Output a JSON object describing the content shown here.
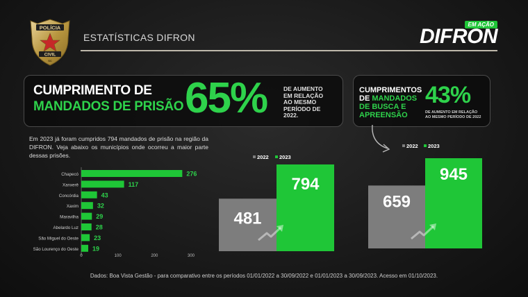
{
  "header": {
    "title": "ESTATÍSTICAS DIFRON",
    "badge": {
      "top": "POLÍCIA",
      "bottom": "CIVIL",
      "state": "SC"
    },
    "logo": {
      "tag": "EM AÇÃO",
      "name": "DIFRON"
    }
  },
  "stat1": {
    "label_line1": "CUMPRIMENTO DE",
    "label_line2": "MANDADOS DE PRISÃO",
    "percent": "65%",
    "desc": [
      "DE AUMENTO",
      "EM RELAÇÃO",
      "AO MESMO",
      "PERÍODO DE",
      "2022."
    ]
  },
  "stat2": {
    "label_line1": "CUMPRIMENTOS",
    "label_line2_prefix": "DE",
    "label_line2": "MANDADOS",
    "label_line3": "DE BUSCA E",
    "label_line4": "APREENSÃO",
    "percent": "43%",
    "desc": [
      "DE AUMENTO EM RELAÇÃO",
      "AO MESMO PERÍODO DE  2022"
    ]
  },
  "intro_text": "Em 2023 já foram cumpridos 794 mandados de prisão na região da DIFRON. Veja abaixo os municípios onde ocorreu a maior parte dessas prisões.",
  "colors": {
    "green": "#2ed24b",
    "gray": "#7d7d7d",
    "bar_green": "#1fc637"
  },
  "chart_data": [
    {
      "type": "bar",
      "orientation": "horizontal",
      "categories": [
        "Chapecó",
        "Xanxerê",
        "Concórdia",
        "Xaxim",
        "Maravilha",
        "Abelardo Luz",
        "São Miguel do Oeste",
        "São Lourenço do Oeste"
      ],
      "values": [
        276,
        117,
        43,
        32,
        29,
        28,
        23,
        19
      ],
      "xlim": [
        0,
        300
      ],
      "xticks": [
        0,
        100,
        200,
        300
      ]
    },
    {
      "type": "bar",
      "categories": [
        "2022",
        "2023"
      ],
      "values": [
        481,
        794
      ],
      "colors": [
        "#7d7d7d",
        "#1fc637"
      ]
    },
    {
      "type": "bar",
      "categories": [
        "2022",
        "2023"
      ],
      "values": [
        659,
        945
      ],
      "colors": [
        "#7d7d7d",
        "#1fc637"
      ]
    }
  ],
  "source": "Dados: Boa Vista Gestão - para comparativo entre os períodos 01/01/2022 a 30/09/2022  e  01/01/2023 a 30/09/2023. Acesso em 01/10/2023."
}
